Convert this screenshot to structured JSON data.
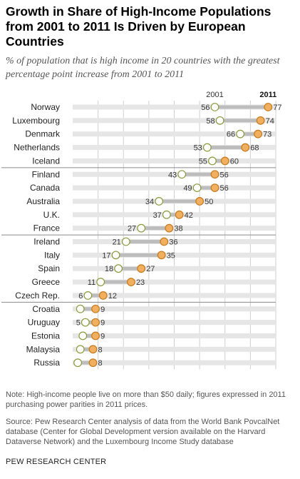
{
  "title": "Growth in Share of High-Income Populations from 2001 to 2011 Is Driven by European Countries",
  "subtitle": "% of population that is high income in 20 countries with the greatest percentage point increase from 2001 to 2011",
  "note": "Note: High-income people live on more than $50 daily; figures expressed in 2011 purchasing power parities in 2011 prices.",
  "source": "Source: Pew Research Center analysis of data from the World Bank PovcalNet database (Center for Global Development version available on the Harvard Dataverse Network) and the Luxembourg Income Study database",
  "brand": "PEW RESEARCH CENTER",
  "colors": {
    "start_dot_fill": "#ffffff",
    "start_dot_stroke": "#8a9a3c",
    "end_dot_fill": "#f0b060",
    "end_dot_stroke": "#c77a1e",
    "connector": "#bdbdbd",
    "track": "#e6e6e6",
    "grid": "#cfcfcf",
    "separator": "#8a8a8a"
  },
  "chart_data": {
    "type": "dot-plot",
    "series": [
      {
        "name": "2001",
        "values": [
          56,
          58,
          66,
          53,
          55,
          43,
          49,
          34,
          37,
          27,
          21,
          17,
          18,
          11,
          6,
          3,
          5,
          4,
          3,
          2
        ]
      },
      {
        "name": "2011",
        "values": [
          77,
          74,
          73,
          68,
          60,
          56,
          56,
          50,
          42,
          38,
          36,
          35,
          27,
          23,
          12,
          9,
          9,
          9,
          8,
          8
        ]
      }
    ],
    "categories": [
      "Norway",
      "Luxembourg",
      "Denmark",
      "Netherlands",
      "Iceland",
      "Finland",
      "Canada",
      "Australia",
      "U.K.",
      "France",
      "Ireland",
      "Italy",
      "Spain",
      "Greece",
      "Czech Rep.",
      "Croatia",
      "Uruguay",
      "Estonia",
      "Malaysia",
      "Russia"
    ],
    "start_labels": [
      "56",
      "58",
      "66",
      "53",
      "55",
      "43",
      "49",
      "34",
      "37",
      "27",
      "21",
      "17",
      "18",
      "11",
      "6",
      "",
      "5",
      "",
      "",
      ""
    ],
    "end_labels": [
      "77",
      "74",
      "73",
      "68",
      "60",
      "56",
      "56",
      "50",
      "42",
      "38",
      "36",
      "35",
      "27",
      "23",
      "12",
      "9",
      "9",
      "9",
      "8",
      "8"
    ],
    "xlim": [
      0,
      80
    ],
    "grid": true
  }
}
